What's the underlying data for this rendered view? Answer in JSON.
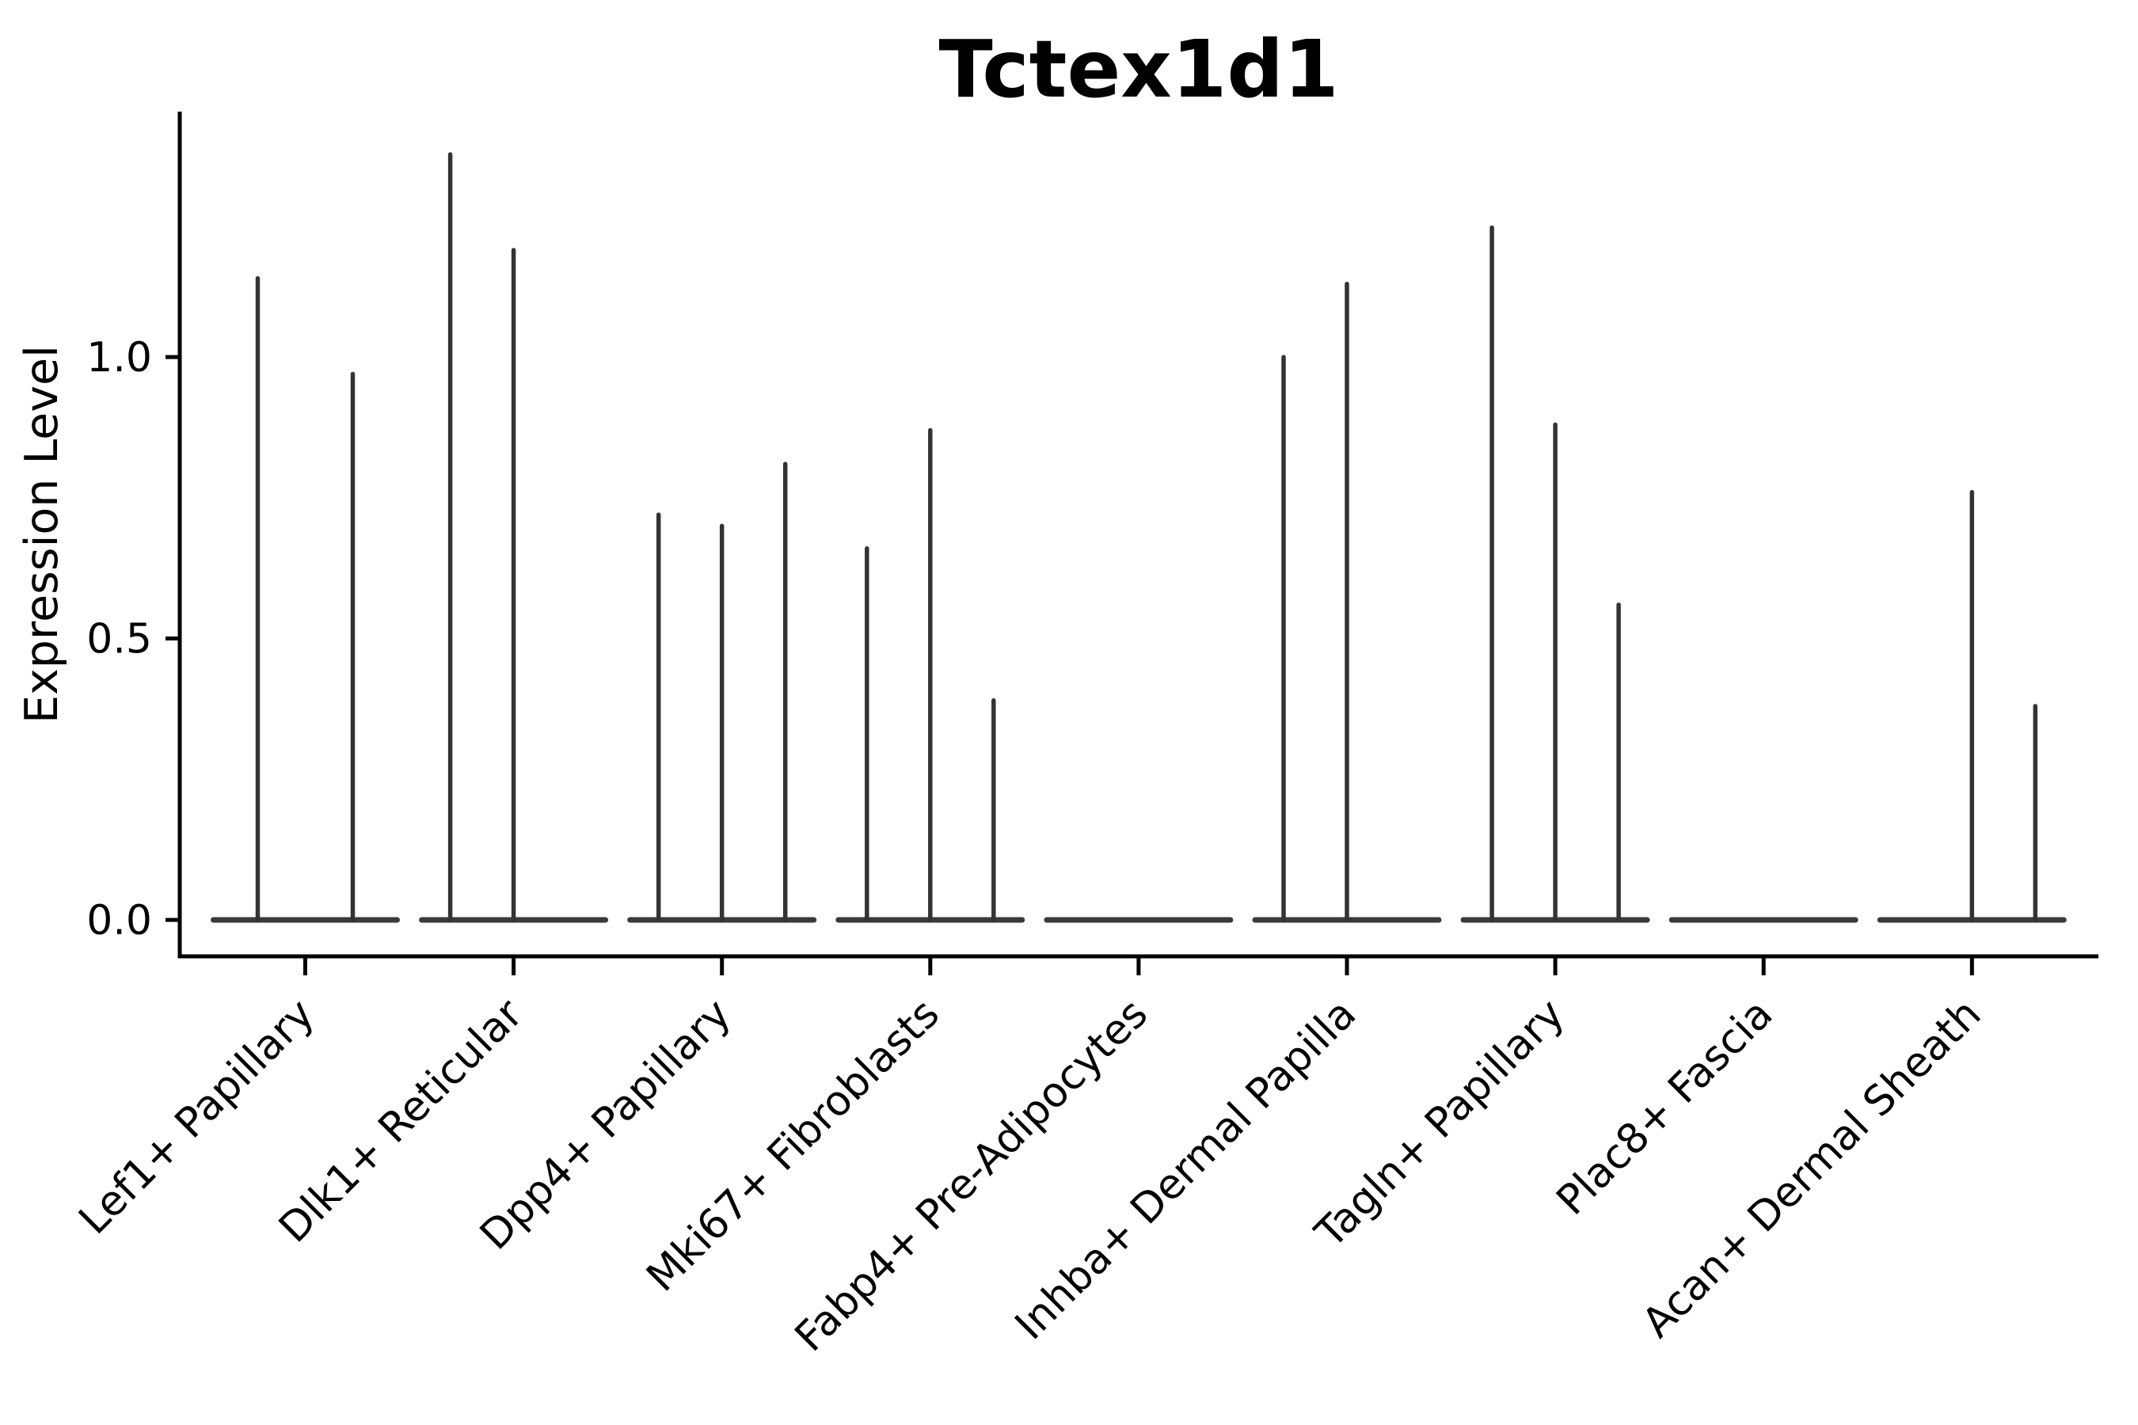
{
  "chart_data": {
    "type": "violin",
    "title": "Tctex1d1",
    "xlabel": "",
    "ylabel": "Expression Level",
    "ylim": [
      -0.07,
      1.43
    ],
    "yticks": [
      0.0,
      0.5,
      1.0
    ],
    "ytick_labels": [
      "0.0",
      "0.5",
      "1.0"
    ],
    "grid": false,
    "legend": false,
    "colors": {
      "violin_edge": "#333333",
      "violin_base": "#3a3a3a",
      "axis": "#000000",
      "text": "#000000",
      "background": "#ffffff"
    },
    "categories": [
      "Lef1+ Papillary",
      "Dlk1+ Reticular",
      "Dpp4+ Papillary",
      "Mki67+ Fibroblasts",
      "Fabp4+ Pre-Adipocytes",
      "Inhba+ Dermal Papilla",
      "Tagln+ Papillary",
      "Plac8+ Fascia",
      "Acan+ Dermal Sheath"
    ],
    "series": [
      {
        "category": "Lef1+ Papillary",
        "violin_max_values": [
          1.14,
          0.97
        ]
      },
      {
        "category": "Dlk1+ Reticular",
        "violin_max_values": [
          1.36,
          1.19,
          0
        ]
      },
      {
        "category": "Dpp4+ Papillary",
        "violin_max_values": [
          0.72,
          0.7,
          0.81
        ]
      },
      {
        "category": "Mki67+ Fibroblasts",
        "violin_max_values": [
          0.66,
          0.87,
          0.39
        ]
      },
      {
        "category": "Fabp4+ Pre-Adipocytes",
        "violin_max_values": [
          0,
          0,
          0
        ]
      },
      {
        "category": "Inhba+ Dermal Papilla",
        "violin_max_values": [
          1.0,
          1.13,
          0
        ]
      },
      {
        "category": "Tagln+ Papillary",
        "violin_max_values": [
          1.23,
          0.88,
          0.56
        ]
      },
      {
        "category": "Plac8+ Fascia",
        "violin_max_values": [
          0,
          0,
          0
        ]
      },
      {
        "category": "Acan+ Dermal Sheath",
        "violin_max_values": [
          0,
          0.76,
          0.38
        ]
      }
    ]
  }
}
